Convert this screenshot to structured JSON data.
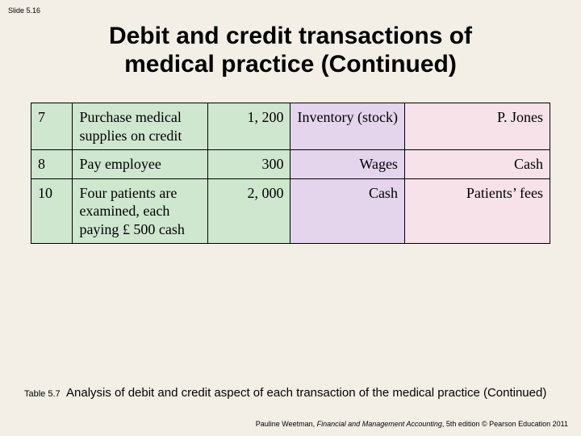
{
  "slide_label": "Slide 5.16",
  "title_line1": "Debit and credit transactions of",
  "title_line2": "medical practice (Continued)",
  "table": {
    "rows": [
      {
        "num": "7",
        "desc": "Purchase medical supplies on credit",
        "amount": "1, 200",
        "debit": "Inventory (stock)",
        "credit": "P. Jones"
      },
      {
        "num": "8",
        "desc": "Pay employee",
        "amount": "300",
        "debit": "Wages",
        "credit": "Cash"
      },
      {
        "num": "10",
        "desc": "Four patients are examined, each paying £ 500 cash",
        "amount": "2, 000",
        "debit": "Cash",
        "credit": "Patients’ fees"
      }
    ],
    "col_bg": {
      "left": "#cfe6cf",
      "debit": "#e4d4ec",
      "credit": "#f8e2ea"
    },
    "border_color": "#000000",
    "font_size_pt": 14
  },
  "caption": {
    "label": "Table 5.7",
    "text": "Analysis of debit and credit aspect of each transaction of the medical practice (Continued)"
  },
  "footer": {
    "author": "Pauline Weetman, ",
    "book": "Financial and Management Accounting",
    "rest": ", 5th edition © Pearson Education 2011"
  },
  "background_color": "#f3efe6"
}
